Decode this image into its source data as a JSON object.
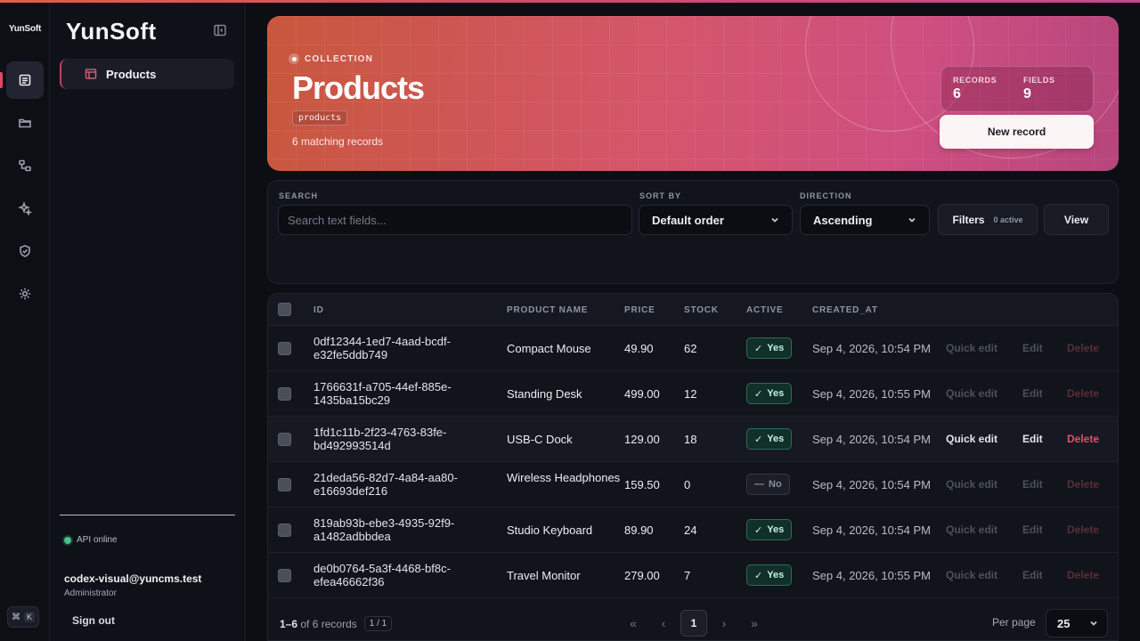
{
  "rail": {
    "brand": "YunSoft",
    "items": [
      {
        "icon": "document-icon",
        "active": true
      },
      {
        "icon": "folder-icon",
        "active": false
      },
      {
        "icon": "relations-icon",
        "active": false
      },
      {
        "icon": "sparkle-icon",
        "active": false
      },
      {
        "icon": "shield-icon",
        "active": false
      },
      {
        "icon": "gear-icon",
        "active": false
      }
    ],
    "shortcut": {
      "mod": "⌘",
      "key": "K"
    }
  },
  "sidebar": {
    "logo": "YunSoft",
    "nav": [
      {
        "label": "Products",
        "icon": "table-icon"
      }
    ],
    "api_status": "API online",
    "user_email": "codex-visual@yuncms.test",
    "user_role": "Administrator",
    "sign_out": "Sign out"
  },
  "hero": {
    "eyebrow": "COLLECTION",
    "title": "Products",
    "slug": "products",
    "count_text": "6 matching records",
    "stats": [
      {
        "label": "RECORDS",
        "value": "6"
      },
      {
        "label": "FIELDS",
        "value": "9"
      }
    ],
    "new_button": "New record"
  },
  "filters": {
    "search_label": "SEARCH",
    "search_placeholder": "Search text fields...",
    "sort_label": "SORT BY",
    "sort_value": "Default order",
    "direction_label": "DIRECTION",
    "direction_value": "Ascending",
    "filters_button": "Filters",
    "filters_badge": "0 active",
    "view_button": "View"
  },
  "table": {
    "columns": [
      "ID",
      "PRODUCT NAME",
      "PRICE",
      "STOCK",
      "ACTIVE",
      "CREATED_AT"
    ],
    "rows": [
      {
        "id_line1": "0df12344-1ed7-4aad-bcdf-",
        "id_line2": "e32fe5ddb749",
        "name": "Compact Mouse",
        "price": "49.90",
        "stock": "62",
        "active": "Yes",
        "created_at": "Sep 4, 2026, 10:54 PM"
      },
      {
        "id_line1": "1766631f-a705-44ef-885e-",
        "id_line2": "1435ba15bc29",
        "name": "Standing Desk",
        "price": "499.00",
        "stock": "12",
        "active": "Yes",
        "created_at": "Sep 4, 2026, 10:55 PM"
      },
      {
        "id_line1": "1fd1c11b-2f23-4763-83fe-",
        "id_line2": "bd492993514d",
        "name": "USB-C Dock",
        "price": "129.00",
        "stock": "18",
        "active": "Yes",
        "created_at": "Sep 4, 2026, 10:54 PM"
      },
      {
        "id_line1": "21deda56-82d7-4a84-aa80-",
        "id_line2": "e16693def216",
        "name": "Wireless Headphones",
        "price": "159.50",
        "stock": "0",
        "active": "No",
        "created_at": "Sep 4, 2026, 10:54 PM"
      },
      {
        "id_line1": "819ab93b-ebe3-4935-92f9-",
        "id_line2": "a1482adbbdea",
        "name": "Studio Keyboard",
        "price": "89.90",
        "stock": "24",
        "active": "Yes",
        "created_at": "Sep 4, 2026, 10:54 PM"
      },
      {
        "id_line1": "de0b0764-5a3f-4468-bf8c-",
        "id_line2": "efea46662f36",
        "name": "Travel Monitor",
        "price": "279.00",
        "stock": "7",
        "active": "Yes",
        "created_at": "Sep 4, 2026, 10:55 PM"
      }
    ],
    "actions": {
      "quick_edit": "Quick edit",
      "edit": "Edit",
      "delete": "Delete"
    },
    "hover_row_index": 2
  },
  "footer": {
    "range": "1–6",
    "of_text": "of 6 records",
    "page_badge": "1 / 1",
    "current_page": "1",
    "per_page_label": "Per page",
    "per_page_value": "25"
  }
}
